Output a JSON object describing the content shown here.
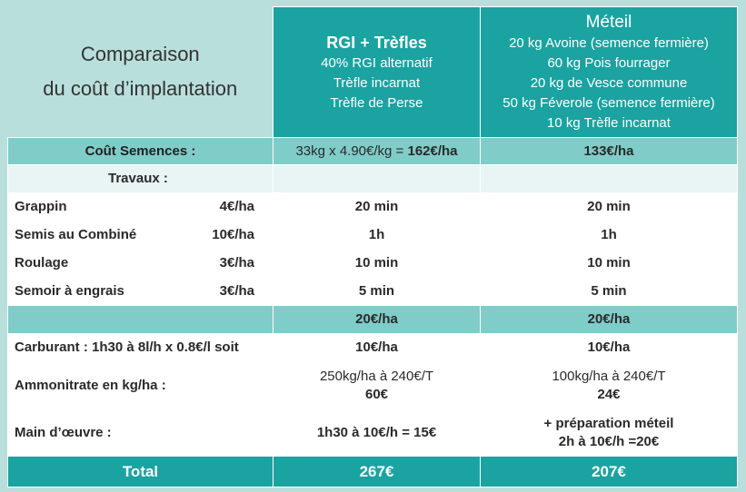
{
  "title": {
    "line1": "Comparaison",
    "line2": "du coût d’implantation"
  },
  "columns": [
    {
      "name": "RGI + Trèfles",
      "lines": [
        "40% RGI alternatif",
        "Trèfle incarnat",
        "Trèfle de Perse"
      ]
    },
    {
      "name": "Méteil",
      "lines": [
        "20 kg Avoine  (semence fermière)",
        "60 kg Pois fourrager",
        "20 kg de Vesce commune",
        "50 kg Féverole (semence fermière)",
        "10 kg Trèfle incarnat"
      ]
    }
  ],
  "seed_cost": {
    "label": "Coût Semences :",
    "rgi_prefix": "33kg x 4.90€/kg = ",
    "rgi_value": "162€/ha",
    "meteil": "133€/ha"
  },
  "travaux": {
    "label": "Travaux :",
    "rows": [
      {
        "name": "Grappin",
        "rate": "4€/ha",
        "rgi": "20 min",
        "meteil": "20 min"
      },
      {
        "name": "Semis au Combiné",
        "rate": "10€/ha",
        "rgi": "1h",
        "meteil": "1h"
      },
      {
        "name": "Roulage",
        "rate": "3€/ha",
        "rgi": "10 min",
        "meteil": "10 min"
      },
      {
        "name": "Semoir à engrais",
        "rate": "3€/ha",
        "rgi": "5 min",
        "meteil": "5 min"
      }
    ],
    "subtotal_rgi": "20€/ha",
    "subtotal_meteil": "20€/ha"
  },
  "carburant": {
    "label": "Carburant : 1h30 à 8l/h x 0.8€/l soit",
    "rgi": "10€/ha",
    "meteil": "10€/ha"
  },
  "ammonitrate": {
    "label": "Ammonitrate en kg/ha :",
    "rgi_line1": "250kg/ha à 240€/T",
    "rgi_line2": "60€",
    "meteil_line1": "100kg/ha à 240€/T",
    "meteil_line2": "24€"
  },
  "main_oeuvre": {
    "label": "Main d’œuvre :",
    "rgi": "1h30 à 10€/h = 15€",
    "meteil_line1": "+ préparation méteil",
    "meteil_line2": "2h à 10€/h =20€"
  },
  "total": {
    "label": "Total",
    "rgi": "267€",
    "meteil": "207€"
  },
  "colors": {
    "header_teal": "#1aa3a0",
    "subtotal_teal": "#7fccc8",
    "frame": "#b9dfdc"
  }
}
